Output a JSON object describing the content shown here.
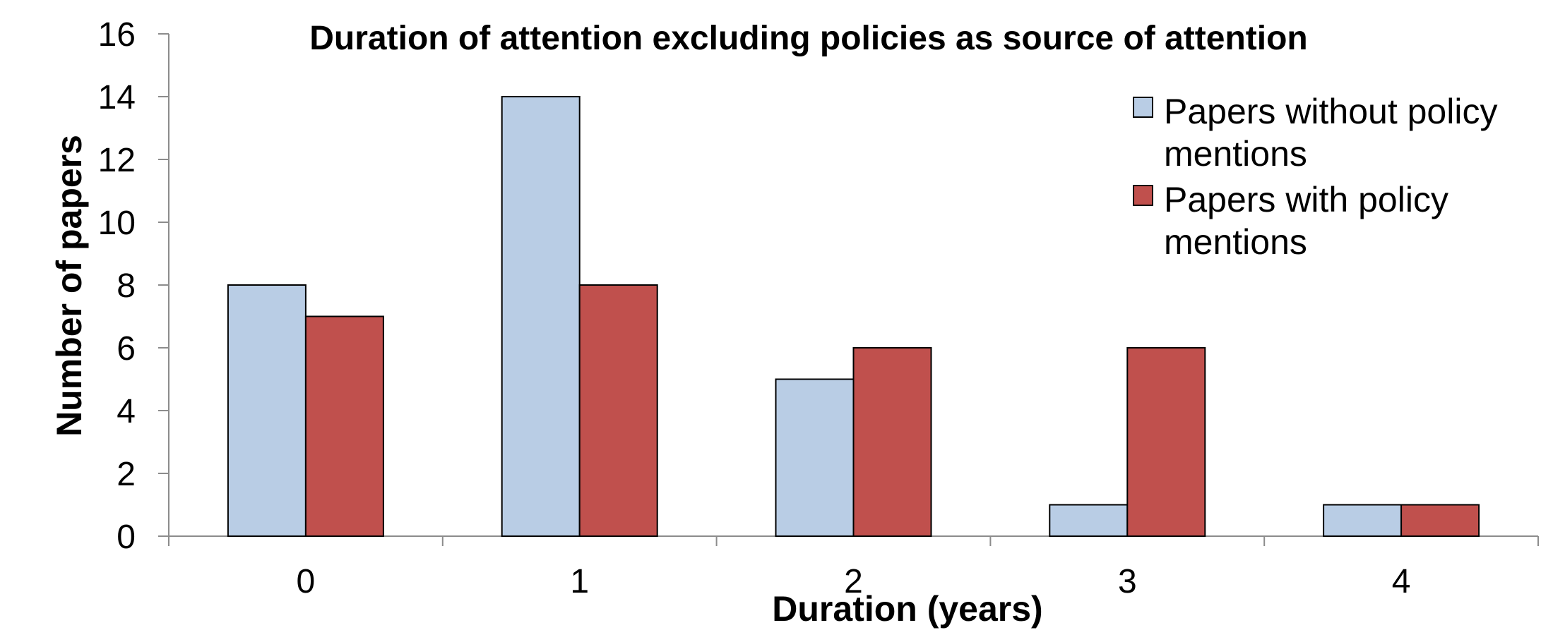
{
  "chart_data": {
    "type": "bar",
    "title": "Duration of attention excluding policies as source of attention",
    "xlabel": "Duration (years)",
    "ylabel": "Number of papers",
    "categories": [
      "0",
      "1",
      "2",
      "3",
      "4"
    ],
    "ylim": [
      0,
      16
    ],
    "yticks": [
      0,
      2,
      4,
      6,
      8,
      10,
      12,
      14,
      16
    ],
    "grid": false,
    "legend_position": "top-right",
    "series": [
      {
        "name": "Papers without policy mentions",
        "legend_lines": [
          "Papers without policy",
          "mentions"
        ],
        "color": "#b9cde5",
        "values": [
          8,
          14,
          5,
          1,
          1
        ]
      },
      {
        "name": "Papers with policy mentions",
        "legend_lines": [
          "Papers with policy",
          "mentions"
        ],
        "color": "#c0504d",
        "values": [
          7,
          8,
          6,
          6,
          1
        ]
      }
    ]
  }
}
